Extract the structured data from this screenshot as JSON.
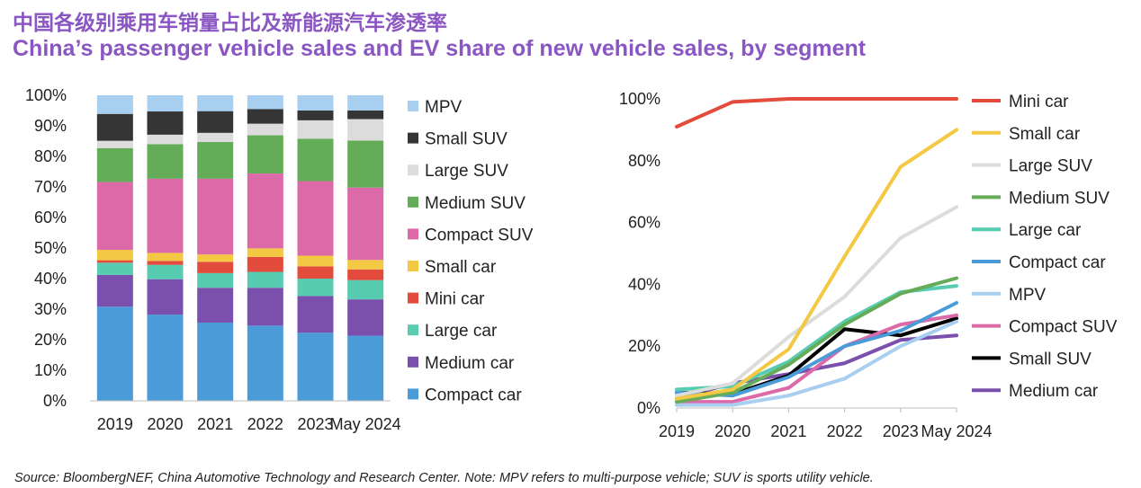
{
  "title_cn": "中国各级别乘用车销量占比及新能源汽车渗透率",
  "title_en": "China’s passenger vehicle sales and EV share of new vehicle sales, by segment",
  "source": "Source: BloombergNEF, China Automotive Technology and Research Center. Note: MPV refers to multi-purpose vehicle; SUV is sports utility vehicle.",
  "chart_data": [
    {
      "type": "bar",
      "stacked": true,
      "categories": [
        "2019",
        "2020",
        "2021",
        "2022",
        "2023",
        "May 2024"
      ],
      "yticks": [
        "0%",
        "10%",
        "20%",
        "30%",
        "40%",
        "50%",
        "60%",
        "70%",
        "80%",
        "90%",
        "100%"
      ],
      "ylim": [
        0,
        100
      ],
      "legend_placement": "right",
      "series": [
        {
          "name": "Compact car",
          "color": "#4a9bd8",
          "values": [
            30.8,
            28.2,
            25.6,
            24.6,
            22.3,
            21.3
          ]
        },
        {
          "name": "Medium car",
          "color": "#7b50ac",
          "values": [
            10.4,
            11.6,
            11.4,
            12.4,
            12.0,
            11.9
          ]
        },
        {
          "name": "Large car",
          "color": "#57ccb1",
          "values": [
            4.0,
            4.7,
            4.8,
            5.2,
            5.7,
            6.3
          ]
        },
        {
          "name": "Mini car",
          "color": "#e34b3c",
          "values": [
            0.8,
            1.3,
            3.7,
            4.9,
            4.0,
            3.5
          ]
        },
        {
          "name": "Small car",
          "color": "#f3c842",
          "values": [
            3.4,
            2.6,
            2.4,
            2.8,
            3.5,
            3.1
          ]
        },
        {
          "name": "Compact SUV",
          "color": "#dc6aa8",
          "values": [
            22.2,
            24.3,
            24.8,
            24.5,
            24.4,
            23.7
          ]
        },
        {
          "name": "Medium SUV",
          "color": "#64ac58",
          "values": [
            11.1,
            11.3,
            12.0,
            12.5,
            13.9,
            15.4
          ]
        },
        {
          "name": "Large SUV",
          "color": "#dcdcdc",
          "values": [
            2.4,
            3.1,
            3.0,
            3.8,
            6.0,
            7.0
          ]
        },
        {
          "name": "Small SUV",
          "color": "#353535",
          "values": [
            8.8,
            7.6,
            7.1,
            4.8,
            3.2,
            2.8
          ]
        },
        {
          "name": "MPV",
          "color": "#a8cff0",
          "values": [
            6.1,
            5.3,
            5.2,
            4.5,
            5.0,
            5.0
          ]
        }
      ]
    },
    {
      "type": "line",
      "x": [
        "2019",
        "2020",
        "2021",
        "2022",
        "2023",
        "May 2024"
      ],
      "yticks": [
        "0%",
        "20%",
        "40%",
        "60%",
        "80%",
        "100%"
      ],
      "ylim": [
        0,
        100
      ],
      "legend_placement": "right",
      "series": [
        {
          "name": "Mini car",
          "color": "#e34b3c",
          "values": [
            91,
            99,
            100,
            100,
            100,
            100
          ]
        },
        {
          "name": "Small car",
          "color": "#f3c842",
          "values": [
            3,
            6,
            19,
            49,
            78,
            90
          ]
        },
        {
          "name": "Large SUV",
          "color": "#dcdcdc",
          "values": [
            4,
            8,
            23,
            36,
            55,
            65
          ]
        },
        {
          "name": "Medium SUV",
          "color": "#64ac58",
          "values": [
            2,
            5,
            14,
            27,
            37,
            42
          ]
        },
        {
          "name": "Large car",
          "color": "#57ccb1",
          "values": [
            6,
            7,
            15,
            28,
            37.5,
            39.5
          ]
        },
        {
          "name": "Compact car",
          "color": "#4a9bd8",
          "values": [
            5,
            4,
            10,
            20,
            25,
            34
          ]
        },
        {
          "name": "MPV",
          "color": "#a8cff0",
          "values": [
            1,
            1,
            4,
            9.5,
            20,
            28
          ]
        },
        {
          "name": "Compact SUV",
          "color": "#dc6aa8",
          "values": [
            2,
            2,
            6.5,
            20,
            27,
            30
          ]
        },
        {
          "name": "Small SUV",
          "color": "#000000",
          "values": [
            5,
            4.5,
            10.5,
            25.5,
            23.5,
            29
          ]
        },
        {
          "name": "Medium car",
          "color": "#7b50ac",
          "values": [
            3,
            8,
            11,
            14.5,
            22,
            23.5
          ]
        }
      ]
    }
  ]
}
